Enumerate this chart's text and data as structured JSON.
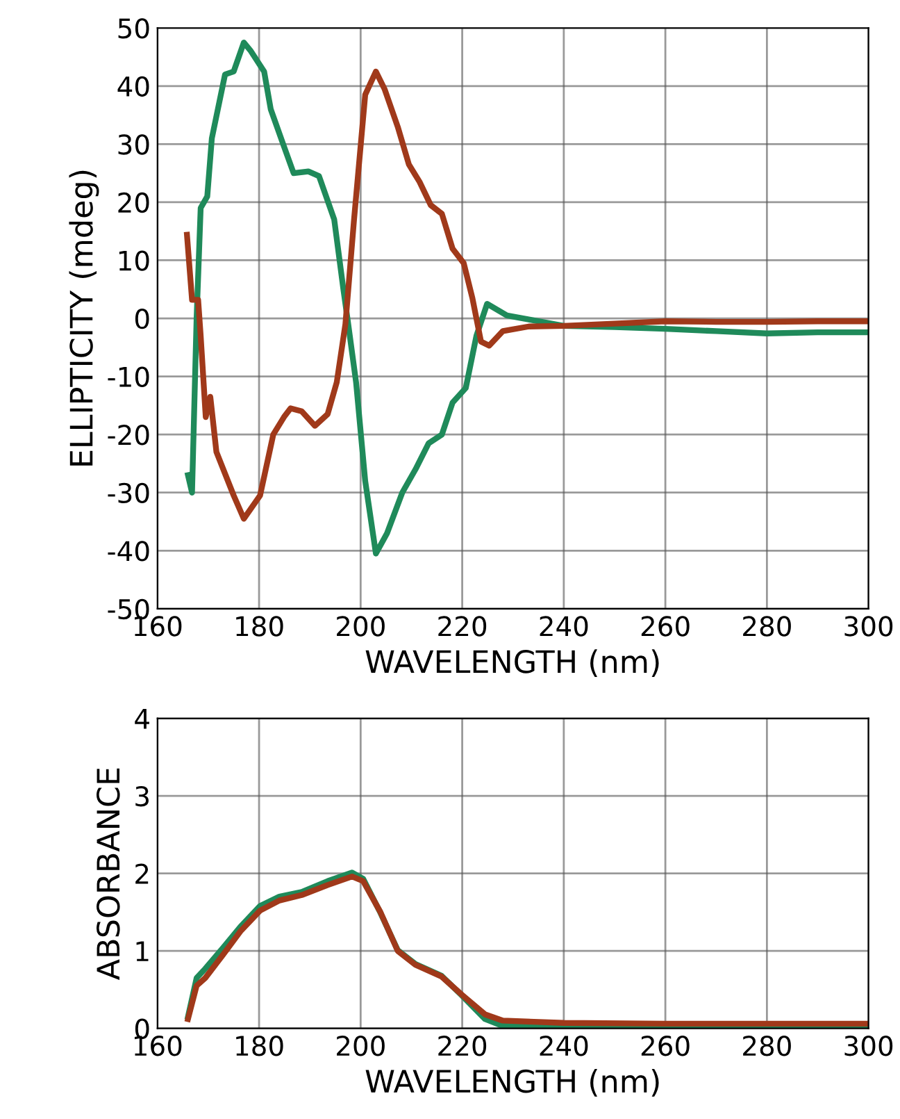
{
  "chart_data": [
    {
      "type": "line",
      "xlabel": "WAVELENGTH (nm)",
      "ylabel": "ELLIPTICITY (mdeg)",
      "xlim": [
        160,
        300
      ],
      "ylim": [
        -50,
        50
      ],
      "xticks": [
        160,
        180,
        200,
        220,
        240,
        260,
        280,
        300
      ],
      "yticks": [
        -50,
        -40,
        -30,
        -20,
        -10,
        0,
        10,
        20,
        30,
        40,
        50
      ],
      "grid": true,
      "legend": false,
      "line_style": "solid",
      "marker": "none",
      "series": [
        {
          "color": "#1f8a5a",
          "x": [
            166,
            166.8,
            167.7,
            168.5,
            169.8,
            170.7,
            173.3,
            175,
            177,
            178.4,
            181,
            182.3,
            184.9,
            186.8,
            189.7,
            191.8,
            194.8,
            196.6,
            197.4,
            199.1,
            200.9,
            203,
            205.2,
            208.2,
            210.8,
            213.4,
            216,
            218.1,
            220.7,
            222.8,
            224.9,
            228.8,
            233.1,
            240,
            250,
            260,
            270,
            280,
            290,
            300
          ],
          "values": [
            -27,
            -30,
            0,
            19,
            21,
            31,
            42,
            42.5,
            47.5,
            46,
            42.5,
            36,
            29.6,
            25,
            25.3,
            24.5,
            17,
            5,
            0,
            -11,
            -28,
            -40.5,
            -37,
            -30,
            -26,
            -21.5,
            -20,
            -14.5,
            -12,
            -3,
            2.5,
            0.5,
            -0.2,
            -1.3,
            -1.5,
            -1.8,
            -2.2,
            -2.6,
            -2.4,
            -2.4
          ]
        },
        {
          "color": "#a0391a",
          "x": [
            165.8,
            166.8,
            168,
            168.5,
            169.5,
            170.4,
            171.6,
            175,
            177,
            180.2,
            182.8,
            184.9,
            186.2,
            188.4,
            191,
            193.5,
            195.3,
            197,
            198.7,
            200.9,
            203,
            204.7,
            207.3,
            209.5,
            211.6,
            213.8,
            216,
            218.1,
            220.3,
            222,
            223.7,
            225.3,
            228,
            233.1,
            240,
            250,
            260,
            270,
            280,
            290,
            300
          ],
          "values": [
            14.4,
            3.2,
            3.2,
            -3,
            -17,
            -13.5,
            -23,
            -30.5,
            -34.5,
            -30.5,
            -20,
            -17,
            -15.5,
            -16,
            -18.5,
            -16.5,
            -11,
            -1,
            17,
            38.5,
            42.5,
            39.5,
            33,
            26.5,
            23.5,
            19.5,
            18,
            12,
            9.5,
            3.5,
            -4,
            -4.7,
            -2.2,
            -1.4,
            -1.3,
            -0.9,
            -0.5,
            -0.6,
            -0.6,
            -0.5,
            -0.5
          ]
        }
      ]
    },
    {
      "type": "line",
      "xlabel": "WAVELENGTH (nm)",
      "ylabel": "ABSORBANCE",
      "xlim": [
        160,
        300
      ],
      "ylim": [
        0,
        4
      ],
      "xticks": [
        160,
        180,
        200,
        220,
        240,
        260,
        280,
        300
      ],
      "yticks": [
        0,
        1,
        2,
        3,
        4
      ],
      "grid": true,
      "legend": false,
      "line_style": "solid",
      "marker": "none",
      "series": [
        {
          "color": "#1f8a5a",
          "x": [
            166,
            167.7,
            169.4,
            172.9,
            176.3,
            180.2,
            184,
            188.4,
            193.5,
            198.3,
            200.5,
            203.9,
            207.3,
            210.8,
            215.9,
            220,
            224.5,
            228,
            240,
            260,
            280,
            300
          ],
          "values": [
            0.15,
            0.65,
            0.77,
            1.04,
            1.31,
            1.58,
            1.7,
            1.76,
            1.9,
            2.01,
            1.93,
            1.49,
            1.01,
            0.83,
            0.68,
            0.42,
            0.12,
            0.03,
            0.03,
            0.03,
            0.03,
            0.03
          ]
        },
        {
          "color": "#a0391a",
          "x": [
            166,
            167.7,
            169.4,
            172.9,
            176.3,
            180.2,
            184,
            188.4,
            193.5,
            198.3,
            200.5,
            203.9,
            207.3,
            210.8,
            215.9,
            220,
            224.5,
            228,
            240,
            260,
            280,
            300
          ],
          "values": [
            0.12,
            0.55,
            0.65,
            0.95,
            1.25,
            1.52,
            1.65,
            1.72,
            1.85,
            1.96,
            1.9,
            1.5,
            1,
            0.82,
            0.67,
            0.43,
            0.18,
            0.1,
            0.07,
            0.06,
            0.06,
            0.06
          ]
        }
      ]
    }
  ]
}
